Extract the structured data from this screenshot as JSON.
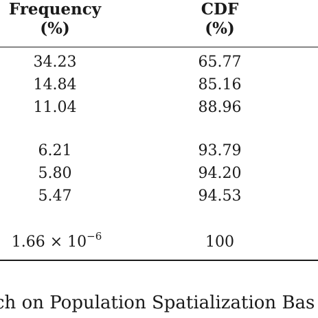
{
  "table": {
    "headers": {
      "frequency": [
        "Frequency",
        "(%)"
      ],
      "cdf": [
        "CDF",
        "(%)"
      ]
    },
    "rows": [
      {
        "frequency": "34.23",
        "cdf": "65.77"
      },
      {
        "frequency": "14.84",
        "cdf": "85.16"
      },
      {
        "frequency": "11.04",
        "cdf": "88.96"
      },
      {
        "frequency": "6.21",
        "cdf": "93.79"
      },
      {
        "frequency": "5.80",
        "cdf": "94.20"
      },
      {
        "frequency": "5.47",
        "cdf": "94.53"
      },
      {
        "frequency_base": "1.66 × 10",
        "frequency_exp": "−6",
        "cdf": "100"
      }
    ]
  },
  "caption": "ch on Population Spatialization Bas"
}
